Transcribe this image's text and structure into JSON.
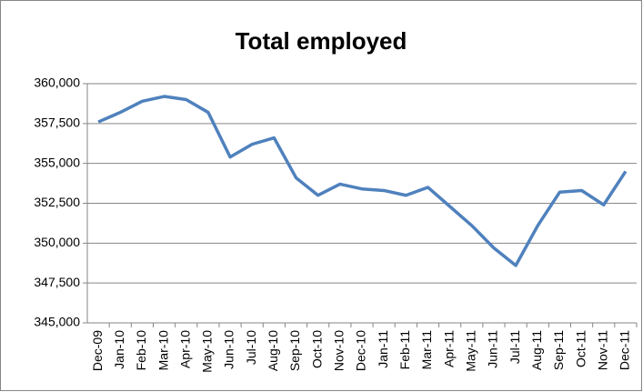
{
  "chart_data": {
    "type": "line",
    "title": "Total employed",
    "categories": [
      "Dec-09",
      "Jan-10",
      "Feb-10",
      "Mar-10",
      "Apr-10",
      "May-10",
      "Jun-10",
      "Jul-10",
      "Aug-10",
      "Sep-10",
      "Oct-10",
      "Nov-10",
      "Dec-10",
      "Jan-11",
      "Feb-11",
      "Mar-11",
      "Apr-11",
      "May-11",
      "Jun-11",
      "Jul-11",
      "Aug-11",
      "Sep-11",
      "Oct-11",
      "Nov-11",
      "Dec-11"
    ],
    "series": [
      {
        "name": "Total employed",
        "color": "#4f81bd",
        "values": [
          357600,
          358200,
          358900,
          359200,
          359000,
          358200,
          355400,
          356200,
          356600,
          354100,
          353000,
          353700,
          353400,
          353300,
          353000,
          353500,
          352300,
          351100,
          349700,
          348600,
          351100,
          353200,
          353300,
          352400,
          354500
        ]
      }
    ],
    "ylim": [
      345000,
      360000
    ],
    "yticks": [
      {
        "value": 345000,
        "label": "345,000"
      },
      {
        "value": 347500,
        "label": "347,500"
      },
      {
        "value": 350000,
        "label": "350,000"
      },
      {
        "value": 352500,
        "label": "352,500"
      },
      {
        "value": 355000,
        "label": "355,000"
      },
      {
        "value": 357500,
        "label": "357,500"
      },
      {
        "value": 360000,
        "label": "360,000"
      }
    ],
    "grid": true
  }
}
